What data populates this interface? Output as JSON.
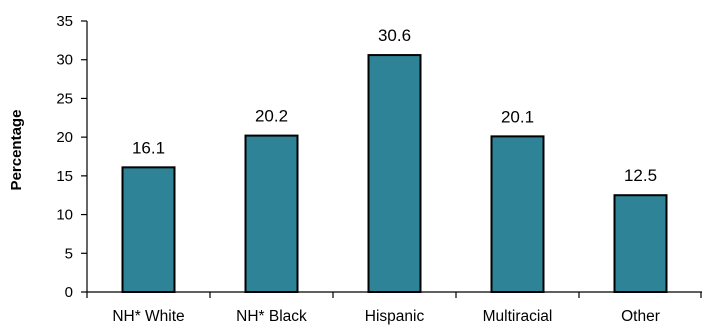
{
  "chart_data": {
    "type": "bar",
    "title": "",
    "xlabel": "",
    "ylabel": "Percentage",
    "categories": [
      "NH* White",
      "NH* Black",
      "Hispanic",
      "Multiracial",
      "Other"
    ],
    "values": [
      16.1,
      20.2,
      30.6,
      20.1,
      12.5
    ],
    "data_labels": [
      "16.1",
      "20.2",
      "30.6",
      "20.1",
      "12.5"
    ],
    "ylim": [
      0,
      35
    ],
    "yticks": [
      0,
      5,
      10,
      15,
      20,
      25,
      30,
      35
    ],
    "grid": false,
    "legend": "none",
    "bar_color": "#2e8396",
    "bar_border_color": "#000000"
  }
}
